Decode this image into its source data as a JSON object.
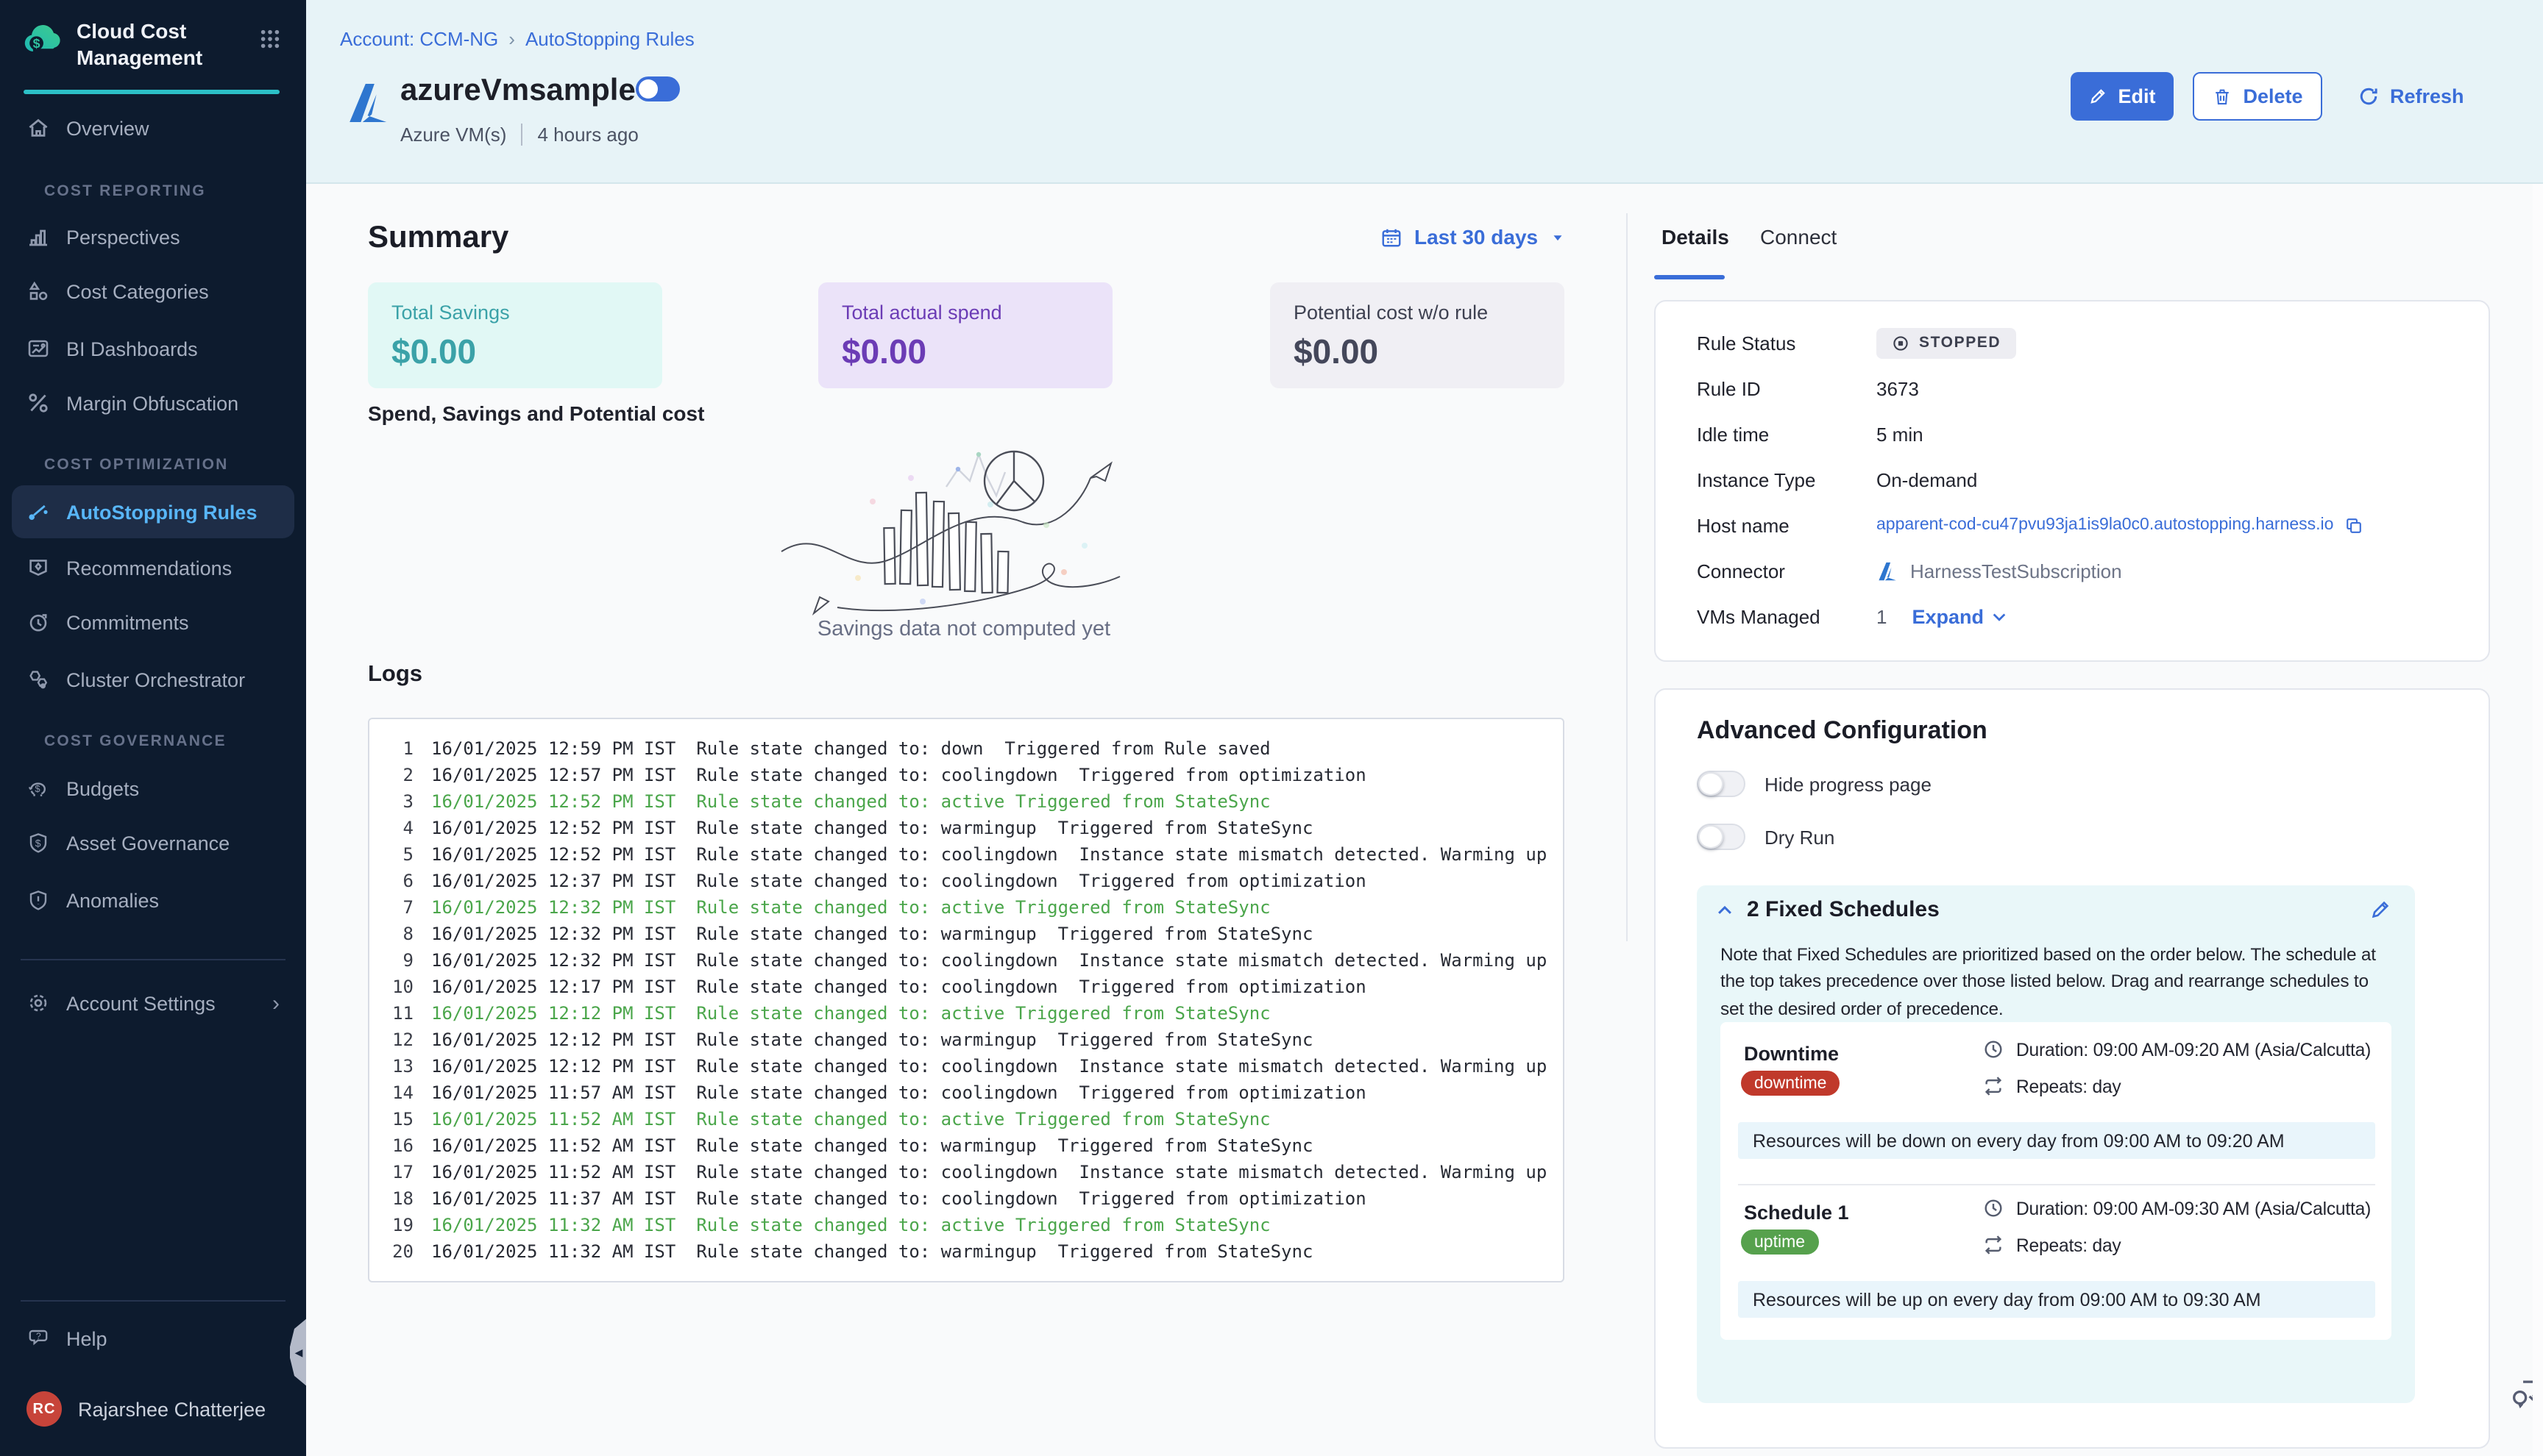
{
  "app": {
    "title": "Cloud Cost Management"
  },
  "sidebar": {
    "overview": "Overview",
    "sections": [
      {
        "label": "COST REPORTING",
        "items": [
          "Perspectives",
          "Cost Categories",
          "BI Dashboards",
          "Margin Obfuscation"
        ]
      },
      {
        "label": "COST OPTIMIZATION",
        "items": [
          "AutoStopping Rules",
          "Recommendations",
          "Commitments",
          "Cluster Orchestrator"
        ]
      },
      {
        "label": "COST GOVERNANCE",
        "items": [
          "Budgets",
          "Asset Governance",
          "Anomalies"
        ]
      }
    ],
    "account_settings": "Account Settings",
    "help": "Help",
    "user": {
      "initials": "RC",
      "name": "Rajarshee Chatterjee"
    }
  },
  "breadcrumb": {
    "account": "Account: CCM-NG",
    "separator": "›",
    "page": "AutoStopping Rules"
  },
  "header": {
    "title": "azureVmsample",
    "service_type": "Azure VM(s)",
    "updated": "4 hours ago",
    "edit_label": "Edit",
    "delete_label": "Delete",
    "refresh_label": "Refresh"
  },
  "summary": {
    "title": "Summary",
    "date_range": "Last 30 days",
    "cards": [
      {
        "label": "Total Savings",
        "value": "$0.00"
      },
      {
        "label": "Total actual spend",
        "value": "$0.00"
      },
      {
        "label": "Potential cost w/o rule",
        "value": "$0.00"
      }
    ],
    "chart_title": "Spend, Savings and Potential cost",
    "empty_message": "Savings data not computed yet"
  },
  "logs": {
    "title": "Logs",
    "entries": [
      {
        "n": "1",
        "time": "16/01/2025 12:59 PM IST",
        "msg": "Rule state changed to: down  Triggered from Rule saved",
        "highlight": false
      },
      {
        "n": "2",
        "time": "16/01/2025 12:57 PM IST",
        "msg": "Rule state changed to: coolingdown  Triggered from optimization",
        "highlight": false
      },
      {
        "n": "3",
        "time": "16/01/2025 12:52 PM IST",
        "msg": "Rule state changed to: active Triggered from StateSync",
        "highlight": true
      },
      {
        "n": "4",
        "time": "16/01/2025 12:52 PM IST",
        "msg": "Rule state changed to: warmingup  Triggered from StateSync",
        "highlight": false
      },
      {
        "n": "5",
        "time": "16/01/2025 12:52 PM IST",
        "msg": "Rule state changed to: coolingdown  Instance state mismatch detected. Warming up",
        "highlight": false
      },
      {
        "n": "6",
        "time": "16/01/2025 12:37 PM IST",
        "msg": "Rule state changed to: coolingdown  Triggered from optimization",
        "highlight": false
      },
      {
        "n": "7",
        "time": "16/01/2025 12:32 PM IST",
        "msg": "Rule state changed to: active Triggered from StateSync",
        "highlight": true
      },
      {
        "n": "8",
        "time": "16/01/2025 12:32 PM IST",
        "msg": "Rule state changed to: warmingup  Triggered from StateSync",
        "highlight": false
      },
      {
        "n": "9",
        "time": "16/01/2025 12:32 PM IST",
        "msg": "Rule state changed to: coolingdown  Instance state mismatch detected. Warming up",
        "highlight": false
      },
      {
        "n": "10",
        "time": "16/01/2025 12:17 PM IST",
        "msg": "Rule state changed to: coolingdown  Triggered from optimization",
        "highlight": false
      },
      {
        "n": "11",
        "time": "16/01/2025 12:12 PM IST",
        "msg": "Rule state changed to: active Triggered from StateSync",
        "highlight": true
      },
      {
        "n": "12",
        "time": "16/01/2025 12:12 PM IST",
        "msg": "Rule state changed to: warmingup  Triggered from StateSync",
        "highlight": false
      },
      {
        "n": "13",
        "time": "16/01/2025 12:12 PM IST",
        "msg": "Rule state changed to: coolingdown  Instance state mismatch detected. Warming up",
        "highlight": false
      },
      {
        "n": "14",
        "time": "16/01/2025 11:57 AM IST",
        "msg": "Rule state changed to: coolingdown  Triggered from optimization",
        "highlight": false
      },
      {
        "n": "15",
        "time": "16/01/2025 11:52 AM IST",
        "msg": "Rule state changed to: active Triggered from StateSync",
        "highlight": true
      },
      {
        "n": "16",
        "time": "16/01/2025 11:52 AM IST",
        "msg": "Rule state changed to: warmingup  Triggered from StateSync",
        "highlight": false
      },
      {
        "n": "17",
        "time": "16/01/2025 11:52 AM IST",
        "msg": "Rule state changed to: coolingdown  Instance state mismatch detected. Warming up",
        "highlight": false
      },
      {
        "n": "18",
        "time": "16/01/2025 11:37 AM IST",
        "msg": "Rule state changed to: coolingdown  Triggered from optimization",
        "highlight": false
      },
      {
        "n": "19",
        "time": "16/01/2025 11:32 AM IST",
        "msg": "Rule state changed to: active Triggered from StateSync",
        "highlight": true
      },
      {
        "n": "20",
        "time": "16/01/2025 11:32 AM IST",
        "msg": "Rule state changed to: warmingup  Triggered from StateSync",
        "highlight": false
      }
    ]
  },
  "details": {
    "tab_details": "Details",
    "tab_connect": "Connect",
    "rule_status_label": "Rule Status",
    "rule_status": "STOPPED",
    "rule_id_label": "Rule ID",
    "rule_id": "3673",
    "idle_time_label": "Idle time",
    "idle_time": "5 min",
    "instance_type_label": "Instance Type",
    "instance_type": "On-demand",
    "host_name_label": "Host name",
    "host_name": "apparent-cod-cu47pvu93ja1is9la0c0.autostopping.harness.io",
    "connector_label": "Connector",
    "connector": "HarnessTestSubscription",
    "vms_label": "VMs Managed",
    "vms_count": "1",
    "expand_label": "Expand"
  },
  "advanced": {
    "title": "Advanced Configuration",
    "hide_progress": "Hide progress page",
    "dry_run": "Dry Run",
    "schedules_title": "2 Fixed Schedules",
    "note": "Note that Fixed Schedules are prioritized based on the order below. The schedule at the top takes precedence over those listed below. Drag and rearrange schedules to set the desired order of precedence.",
    "schedules": [
      {
        "name": "Downtime",
        "badge": "downtime",
        "duration": "Duration: 09:00 AM-09:20 AM (Asia/Calcutta)",
        "repeats": "Repeats: day",
        "summary": "Resources will be down on every day from 09:00 AM to 09:20 AM"
      },
      {
        "name": "Schedule 1",
        "badge": "uptime",
        "duration": "Duration: 09:00 AM-09:30 AM (Asia/Calcutta)",
        "repeats": "Repeats: day",
        "summary": "Resources will be up on every day from 09:00 AM to 09:30 AM"
      }
    ]
  },
  "colors": {
    "primary": "#3a6dd8",
    "sidebar_bg": "#0d1b2e",
    "teal_accent": "#2cc0c7",
    "log_green": "#4ba64b",
    "downtime_badge": "#c0392b",
    "uptime_badge": "#56a14d",
    "header_band": "#e7f3f7"
  }
}
